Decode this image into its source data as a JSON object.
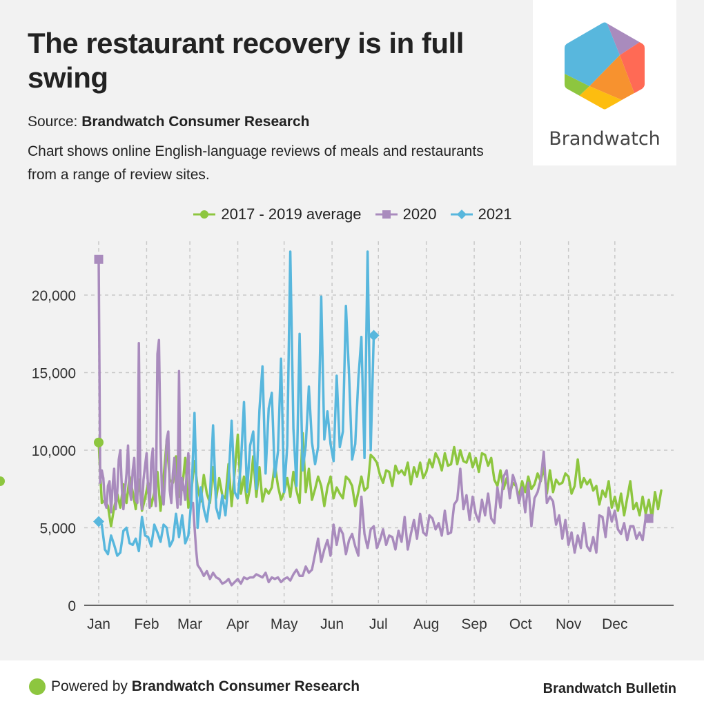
{
  "header": {
    "title": "The restaurant recovery is in full swing",
    "source_label": "Source: ",
    "source_name": "Brandwatch Consumer Research",
    "description": "Chart shows online English-language reviews of meals and restaurants from a range of review sites."
  },
  "logo": {
    "wordmark": "Brandwatch",
    "colors": [
      "#58b7dd",
      "#a98bbd",
      "#ff6a55",
      "#f7922f",
      "#fdbd10",
      "#8dc63f"
    ]
  },
  "footer": {
    "powered_prefix": "Powered by ",
    "powered_name": "Brandwatch Consumer Research",
    "publication": "Brandwatch Bulletin",
    "dot_color": "#8dc63f"
  },
  "chart_data": {
    "type": "line",
    "title": "The restaurant recovery is in full swing",
    "xlabel": "",
    "ylabel": "",
    "ylim": [
      0,
      23000
    ],
    "xlim_days": [
      0,
      364
    ],
    "grid": true,
    "legend_position": "top-center",
    "y_ticks": [
      {
        "value": 0,
        "label": "0"
      },
      {
        "value": 5000,
        "label": "5,000"
      },
      {
        "value": 10000,
        "label": "10,000"
      },
      {
        "value": 15000,
        "label": "15,000"
      },
      {
        "value": 20000,
        "label": "20,000"
      }
    ],
    "x_ticks": [
      {
        "day": 0,
        "label": "Jan"
      },
      {
        "day": 31,
        "label": "Feb"
      },
      {
        "day": 59,
        "label": "Mar"
      },
      {
        "day": 90,
        "label": "Apr"
      },
      {
        "day": 120,
        "label": "May"
      },
      {
        "day": 151,
        "label": "Jun"
      },
      {
        "day": 181,
        "label": "Jul"
      },
      {
        "day": 212,
        "label": "Aug"
      },
      {
        "day": 243,
        "label": "Sep"
      },
      {
        "day": 273,
        "label": "Oct"
      },
      {
        "day": 304,
        "label": "Nov"
      },
      {
        "day": 334,
        "label": "Dec"
      }
    ],
    "series": [
      {
        "name": "2017 - 2019 average",
        "color": "#8dc63f",
        "marker": "circle",
        "x_days": [
          0,
          2,
          4,
          6,
          8,
          10,
          12,
          14,
          16,
          18,
          20,
          22,
          24,
          26,
          28,
          30,
          32,
          34,
          36,
          38,
          40,
          42,
          44,
          46,
          48,
          50,
          52,
          54,
          56,
          58,
          60,
          62,
          64,
          66,
          68,
          70,
          72,
          74,
          76,
          78,
          80,
          82,
          84,
          86,
          88,
          90,
          92,
          94,
          96,
          98,
          100,
          102,
          104,
          106,
          108,
          110,
          112,
          114,
          116,
          118,
          120,
          122,
          124,
          126,
          128,
          130,
          132,
          134,
          136,
          138,
          140,
          142,
          144,
          146,
          148,
          150,
          152,
          154,
          156,
          158,
          160,
          162,
          164,
          166,
          168,
          170,
          172,
          174,
          176,
          178,
          180,
          182,
          184,
          186,
          188,
          190,
          192,
          194,
          196,
          198,
          200,
          202,
          204,
          206,
          208,
          210,
          212,
          214,
          216,
          218,
          220,
          222,
          224,
          226,
          228,
          230,
          232,
          234,
          236,
          238,
          240,
          242,
          244,
          246,
          248,
          250,
          252,
          254,
          256,
          258,
          260,
          262,
          264,
          266,
          268,
          270,
          272,
          274,
          276,
          278,
          280,
          282,
          284,
          286,
          288,
          290,
          292,
          294,
          296,
          298,
          300,
          302,
          304,
          306,
          308,
          310,
          312,
          314,
          316,
          318,
          320,
          322,
          324,
          326,
          328,
          330,
          332,
          334,
          336,
          338,
          340,
          342,
          344,
          346,
          348,
          350,
          352,
          354,
          356,
          358,
          360,
          362,
          364
        ],
        "values": [
          10500,
          6600,
          6800,
          6400,
          5100,
          6300,
          7200,
          6300,
          7800,
          6600,
          8300,
          7300,
          6200,
          8100,
          6100,
          6900,
          7900,
          6400,
          7300,
          8600,
          6100,
          8200,
          10600,
          8100,
          7900,
          9600,
          7000,
          7500,
          9500,
          6300,
          7400,
          9300,
          7600,
          6700,
          8400,
          7200,
          6600,
          8900,
          6900,
          8200,
          7100,
          6900,
          9100,
          6400,
          8600,
          11000,
          7200,
          8300,
          6600,
          7600,
          9600,
          7000,
          8900,
          6700,
          7500,
          7200,
          7600,
          9100,
          7700,
          6800,
          7300,
          8200,
          7000,
          8600,
          7400,
          6600,
          11100,
          7300,
          8800,
          6800,
          7500,
          8300,
          7700,
          6400,
          7600,
          8300,
          6900,
          7600,
          7200,
          6900,
          8300,
          8100,
          7700,
          6400,
          7300,
          8300,
          7400,
          7600,
          9700,
          9500,
          9200,
          8400,
          7900,
          8700,
          8600,
          7700,
          9000,
          8500,
          8700,
          8400,
          9200,
          7800,
          8900,
          8300,
          9200,
          8200,
          8600,
          9400,
          8900,
          9800,
          9400,
          8700,
          9800,
          9000,
          9100,
          10200,
          9100,
          10000,
          9300,
          9200,
          9800,
          8900,
          9500,
          8600,
          9800,
          9700,
          9000,
          9500,
          8100,
          7700,
          8700,
          7500,
          8200,
          7200,
          7900,
          7700,
          7000,
          8000,
          7300,
          8300,
          7500,
          7800,
          8500,
          8000,
          8900,
          7200,
          8700,
          7300,
          8100,
          7800,
          7900,
          8500,
          8300,
          7200,
          7700,
          9400,
          7600,
          8200,
          7800,
          8100,
          7400,
          7700,
          6500,
          7400,
          7000,
          8000,
          6300,
          7000,
          6100,
          7200,
          5800,
          6900,
          8000,
          6200,
          6600,
          5800,
          7000,
          5900,
          6800,
          5600,
          7300,
          6200,
          7400,
          7800,
          8000
        ],
        "end_marker": true
      },
      {
        "name": "2020",
        "color": "#a98bbd",
        "marker": "square",
        "x_days": [
          0,
          1,
          2,
          3,
          4,
          5,
          6,
          7,
          8,
          9,
          10,
          11,
          12,
          13,
          14,
          15,
          16,
          17,
          18,
          19,
          20,
          21,
          22,
          23,
          24,
          25,
          26,
          27,
          28,
          29,
          30,
          31,
          32,
          33,
          34,
          35,
          36,
          37,
          38,
          39,
          40,
          41,
          42,
          43,
          44,
          45,
          46,
          47,
          48,
          49,
          50,
          51,
          52,
          53,
          54,
          55,
          56,
          57,
          58,
          59,
          60,
          61,
          62,
          63,
          64,
          66,
          68,
          70,
          72,
          74,
          76,
          78,
          80,
          82,
          84,
          86,
          88,
          90,
          92,
          94,
          96,
          98,
          100,
          102,
          104,
          106,
          108,
          110,
          112,
          114,
          116,
          118,
          120,
          122,
          124,
          126,
          128,
          130,
          132,
          134,
          136,
          138,
          140,
          142,
          144,
          146,
          148,
          150,
          152,
          154,
          156,
          158,
          160,
          162,
          164,
          166,
          168,
          170,
          172,
          174,
          176,
          178,
          180,
          182,
          184,
          186,
          188,
          190,
          192,
          194,
          196,
          198,
          200,
          202,
          204,
          206,
          208,
          210,
          212,
          214,
          216,
          218,
          220,
          222,
          224,
          226,
          228,
          230,
          232,
          234,
          236,
          238,
          240,
          242,
          244,
          246,
          248,
          250,
          252,
          254,
          256,
          258,
          260,
          262,
          264,
          266,
          268,
          270,
          272,
          274,
          276,
          278,
          280,
          282,
          284,
          286,
          288,
          290,
          292,
          294,
          296,
          298,
          300,
          302,
          304,
          306,
          308,
          310,
          312,
          314,
          316,
          318,
          320,
          322,
          324,
          326,
          328,
          330,
          332,
          334,
          336,
          338,
          340,
          342,
          344,
          346,
          348,
          350,
          352,
          354,
          356,
          358,
          360,
          362,
          364
        ],
        "values": [
          22300,
          7900,
          8700,
          8200,
          6600,
          6300,
          7700,
          8000,
          6000,
          7700,
          8800,
          6200,
          7300,
          9400,
          10000,
          7500,
          6200,
          7400,
          8500,
          10300,
          7400,
          6800,
          8700,
          9500,
          6800,
          6600,
          16900,
          7100,
          6200,
          8100,
          9000,
          9800,
          7500,
          6300,
          9200,
          10100,
          7200,
          6400,
          16200,
          17100,
          10400,
          7100,
          6500,
          8200,
          10700,
          11200,
          7400,
          6600,
          8500,
          9500,
          7600,
          6300,
          15100,
          6500,
          8200,
          7600,
          6800,
          8700,
          9800,
          7000,
          6500,
          6600,
          5100,
          3600,
          2600,
          2300,
          1900,
          2200,
          1700,
          2100,
          1800,
          1700,
          1400,
          1500,
          1700,
          1300,
          1500,
          1700,
          1400,
          1800,
          1700,
          1800,
          1800,
          2000,
          1900,
          1800,
          2100,
          1500,
          1800,
          1700,
          1800,
          1500,
          1700,
          1800,
          1600,
          2000,
          2300,
          1900,
          1900,
          2500,
          2100,
          2300,
          3300,
          4300,
          2800,
          3600,
          4200,
          3200,
          5200,
          3900,
          5000,
          4600,
          3300,
          4200,
          4600,
          3800,
          3200,
          7000,
          4600,
          3700,
          4900,
          5100,
          3700,
          4200,
          4900,
          3900,
          4500,
          4400,
          3600,
          4800,
          4100,
          5700,
          3600,
          4600,
          5500,
          4300,
          5900,
          4700,
          4500,
          5800,
          5600,
          4900,
          5300,
          4500,
          6100,
          4600,
          4700,
          6500,
          6800,
          8800,
          6200,
          7100,
          5500,
          7000,
          5900,
          5400,
          6800,
          5800,
          7200,
          5600,
          5300,
          7600,
          6300,
          8300,
          8700,
          6900,
          8400,
          7800,
          6600,
          7600,
          6000,
          7900,
          5100,
          6900,
          7300,
          8100,
          9900,
          6600,
          7000,
          6700,
          5200,
          5800,
          4300,
          5500,
          3900,
          4700,
          3400,
          4500,
          3700,
          5300,
          3800,
          3500,
          4400,
          3400,
          5800,
          5700,
          4400,
          6300,
          5400,
          6100,
          4900,
          4600,
          5300,
          4200,
          5100,
          5100,
          4300,
          4700,
          4200,
          5700,
          5600
        ],
        "end_marker": true
      },
      {
        "name": "2021",
        "color": "#58b7dd",
        "marker": "diamond",
        "x_days": [
          0,
          2,
          4,
          6,
          8,
          10,
          12,
          14,
          16,
          18,
          20,
          22,
          24,
          26,
          28,
          30,
          32,
          34,
          36,
          38,
          40,
          42,
          44,
          46,
          48,
          50,
          52,
          54,
          56,
          58,
          60,
          62,
          64,
          66,
          68,
          70,
          72,
          74,
          76,
          78,
          80,
          82,
          84,
          86,
          88,
          90,
          92,
          94,
          96,
          98,
          100,
          102,
          104,
          106,
          108,
          110,
          112,
          114,
          116,
          118,
          120,
          122,
          124,
          126,
          128,
          130,
          132,
          134,
          136,
          138,
          140,
          142,
          144,
          146,
          148,
          150,
          152,
          154,
          156,
          158,
          160,
          162,
          164,
          166,
          168,
          170,
          172,
          174,
          176,
          178
        ],
        "values": [
          5400,
          5200,
          3600,
          3300,
          4500,
          3900,
          3200,
          3400,
          4800,
          5000,
          4000,
          3900,
          4300,
          3500,
          5700,
          4500,
          4400,
          3800,
          5200,
          4700,
          4100,
          5200,
          5000,
          3800,
          4200,
          5900,
          4400,
          5800,
          4000,
          4500,
          6800,
          12400,
          5000,
          7600,
          6200,
          5400,
          7000,
          11600,
          6300,
          5600,
          7100,
          5800,
          8000,
          11900,
          7300,
          6900,
          9100,
          13100,
          7300,
          10300,
          11200,
          7500,
          12600,
          15400,
          8500,
          12700,
          13700,
          8300,
          9900,
          15900,
          7300,
          10300,
          22800,
          11400,
          7700,
          17500,
          8700,
          10300,
          14100,
          10500,
          9100,
          10200,
          19900,
          10700,
          12500,
          10400,
          9300,
          14800,
          10200,
          11200,
          19300,
          14900,
          9400,
          10400,
          14600,
          17300,
          9500,
          22800,
          10000,
          17400
        ],
        "end_marker": true
      }
    ]
  }
}
